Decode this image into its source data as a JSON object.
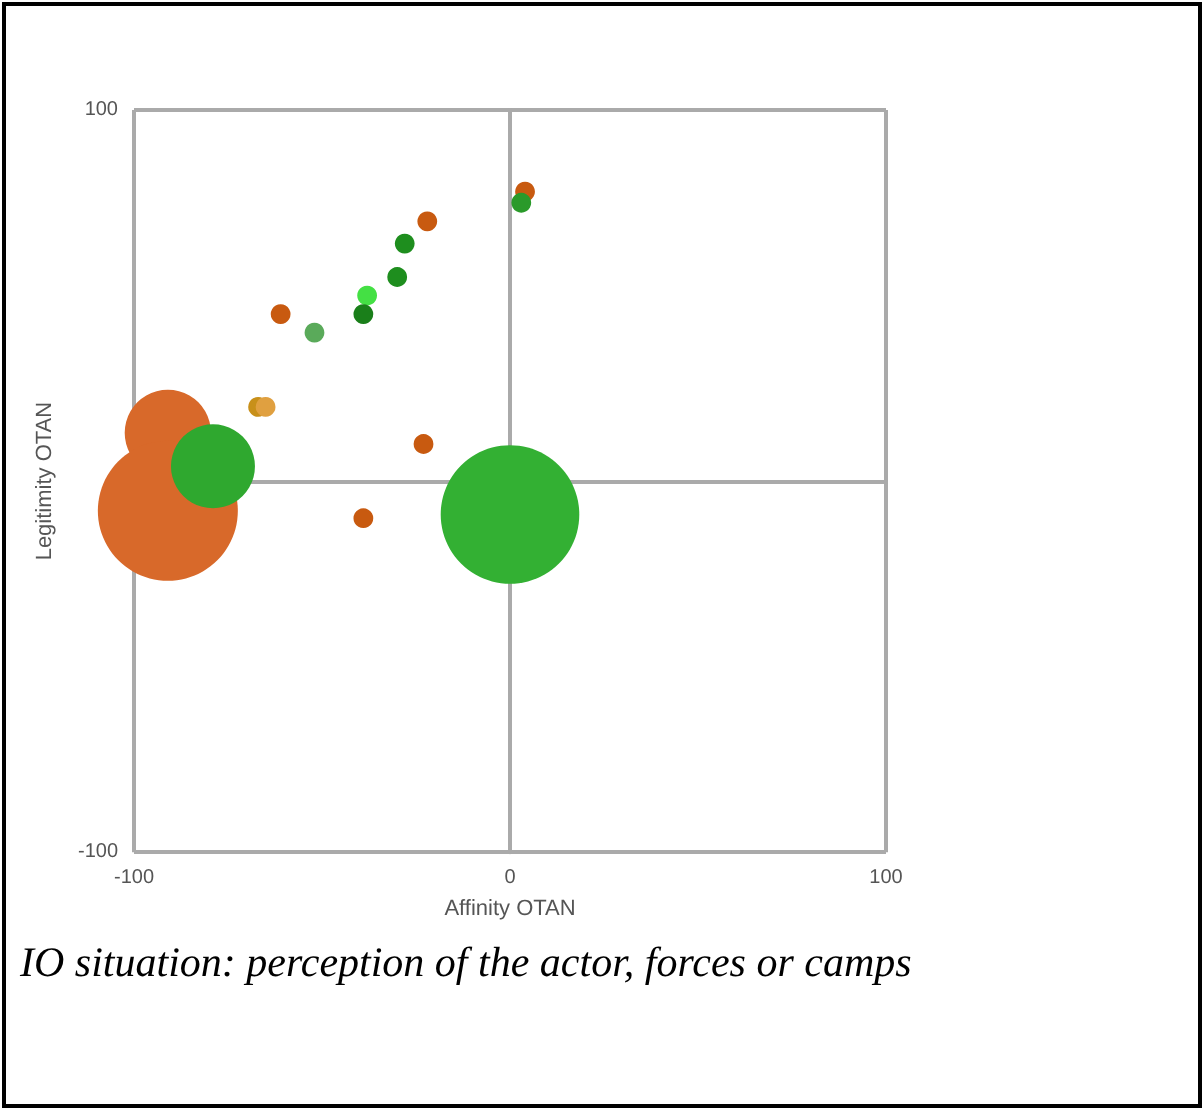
{
  "chart_data": {
    "type": "bubble",
    "xlabel": "Affinity OTAN",
    "ylabel": "Legitimity OTAN",
    "annotations": [
      "IO situation: perception of the actor, forces or camps"
    ],
    "xlim": [
      -100,
      100
    ],
    "ylim": [
      -100,
      100
    ],
    "xticks": [
      -100,
      0,
      100
    ],
    "yticks": [
      -100,
      {
        "value": 0,
        "label": null
      },
      100
    ],
    "grid": true,
    "x": [
      -91,
      -91,
      -79,
      0,
      4,
      3,
      -22,
      -28,
      -30,
      -38,
      -39,
      -52,
      -61,
      -67,
      -65,
      -23,
      -39
    ],
    "values": [
      13,
      -8,
      4,
      -9,
      78,
      75,
      70,
      64,
      55,
      50,
      45,
      40,
      45,
      20,
      20,
      10,
      -10
    ],
    "sizes": [
      0.38,
      1,
      0.36,
      0.98,
      0.02,
      0.02,
      0.02,
      0.02,
      0.02,
      0.02,
      0.02,
      0.02,
      0.02,
      0.02,
      0.02,
      0.02,
      0.02
    ],
    "colors": [
      "#d8692a",
      "#d8692a",
      "#2fa82f",
      "#33b033",
      "#c85a10",
      "#2a9a2a",
      "#c85a10",
      "#1e8e1e",
      "#1e8e1e",
      "#44e044",
      "#1a7f1a",
      "#5aaa5a",
      "#c85a10",
      "#c8901a",
      "#e0a040",
      "#c85a10",
      "#c85a10"
    ]
  }
}
